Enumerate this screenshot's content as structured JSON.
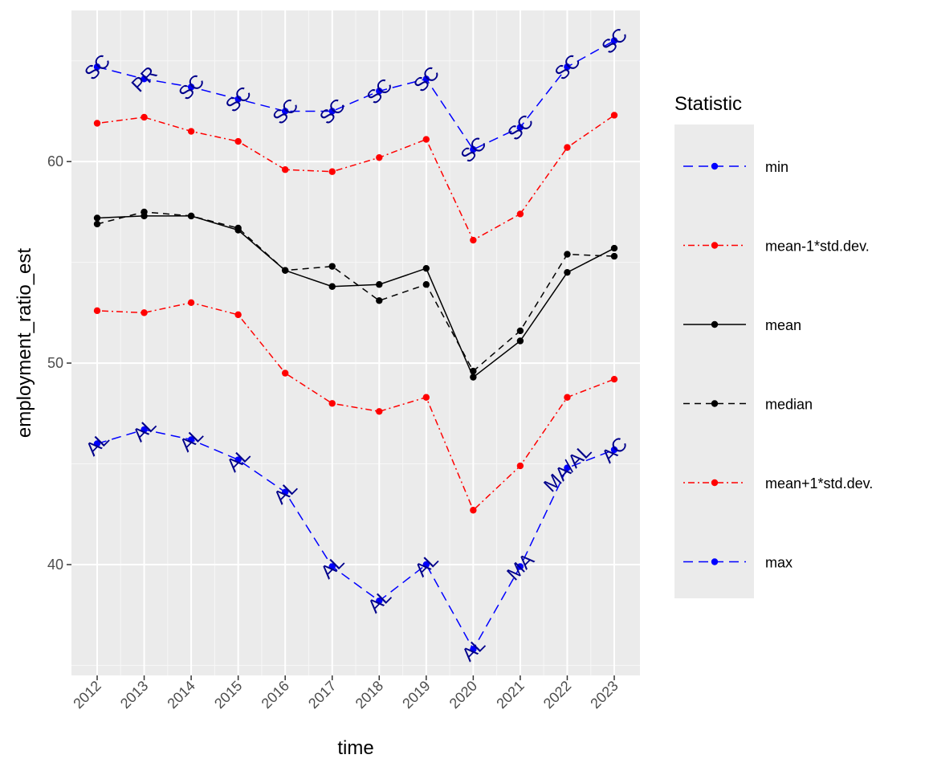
{
  "chart_data": {
    "type": "line",
    "xlabel": "time",
    "ylabel": "employment_ratio_est",
    "x": [
      "2012",
      "2013",
      "2014",
      "2015",
      "2016",
      "2017",
      "2018",
      "2019",
      "2020",
      "2021",
      "2022",
      "2023"
    ],
    "ylim": [
      34.5,
      67.5
    ],
    "y_ticks": [
      40,
      50,
      60
    ],
    "grid": true,
    "legend": {
      "title": "Statistic",
      "position": "right"
    },
    "series": [
      {
        "name": "min",
        "color": "#0000ff",
        "dash": "long",
        "values": [
          64.7,
          64.1,
          63.7,
          63.1,
          62.5,
          62.5,
          63.5,
          64.1,
          60.6,
          61.7,
          64.7,
          66.0
        ]
      },
      {
        "name": "mean-1*std.dev.",
        "color": "#ff0000",
        "dash": "dotdash",
        "values": [
          61.9,
          62.2,
          61.5,
          61.0,
          59.6,
          59.5,
          60.2,
          61.1,
          56.1,
          57.4,
          60.7,
          62.3
        ]
      },
      {
        "name": "mean",
        "color": "#000000",
        "dash": "solid",
        "values": [
          57.2,
          57.3,
          57.3,
          56.6,
          54.6,
          53.8,
          53.9,
          54.7,
          49.3,
          51.1,
          54.5,
          55.7
        ]
      },
      {
        "name": "median",
        "color": "#000000",
        "dash": "dashed",
        "values": [
          56.9,
          57.5,
          57.3,
          56.7,
          54.6,
          54.8,
          53.1,
          53.9,
          49.6,
          51.6,
          55.4,
          55.3
        ]
      },
      {
        "name": "mean+1*std.dev.",
        "color": "#ff0000",
        "dash": "dotdash",
        "values": [
          52.6,
          52.5,
          53.0,
          52.4,
          49.5,
          48.0,
          47.6,
          48.3,
          42.7,
          44.9,
          48.3,
          49.2
        ]
      },
      {
        "name": "max",
        "color": "#0000ff",
        "dash": "long",
        "values": [
          46.0,
          46.7,
          46.2,
          45.2,
          43.6,
          39.9,
          38.2,
          40.0,
          35.8,
          39.9,
          44.8,
          45.7
        ]
      }
    ],
    "point_labels": {
      "min": [
        "SC",
        "PR",
        "SC",
        "SC",
        "SC",
        "SC",
        "SC",
        "SC",
        "SC",
        "SC",
        "SC",
        "SC"
      ],
      "max": [
        "AL",
        "AL",
        "AL",
        "AL",
        "AL",
        "AL",
        "AL",
        "AL",
        "AL",
        "MA",
        "MA/AL",
        "AC"
      ]
    }
  }
}
